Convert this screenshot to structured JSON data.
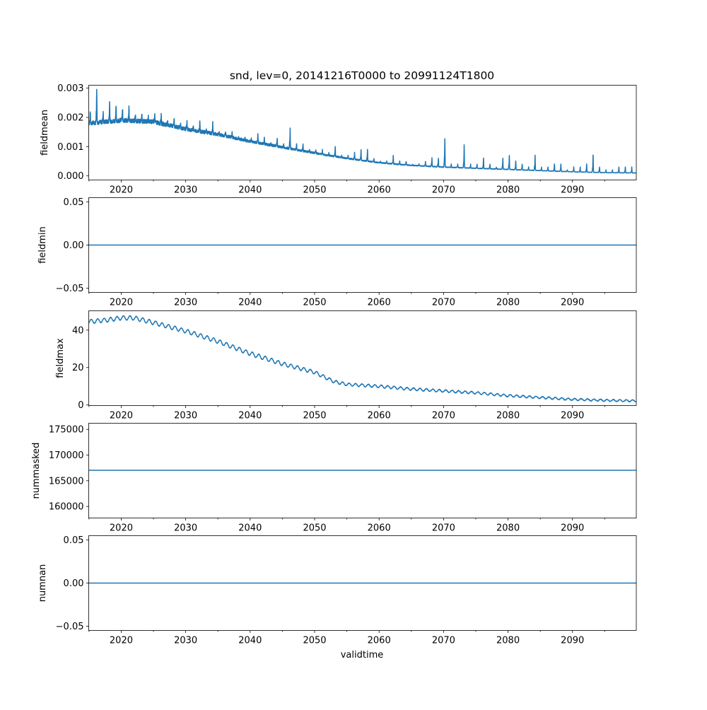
{
  "chart_data": {
    "type": "line",
    "title": "snd, lev=0, 20141216T0000 to 20991124T1800",
    "xlabel": "validtime",
    "xlim": [
      2014.96,
      2099.9
    ],
    "xticks": [
      "2020",
      "2030",
      "2040",
      "2050",
      "2060",
      "2070",
      "2080",
      "2090"
    ],
    "line_color": "#1f77b4",
    "subplots": [
      {
        "ylabel": "fieldmean",
        "ylim": [
          -0.00014,
          0.0031
        ],
        "yticks": [
          "0.000",
          "0.001",
          "0.002",
          "0.003"
        ],
        "ytick_values": [
          0,
          0.001,
          0.002,
          0.003
        ],
        "kind": "seasonal_spikes",
        "baseline_years": [
          2015,
          2020,
          2025,
          2030,
          2035,
          2040,
          2045,
          2050,
          2055,
          2060,
          2065,
          2070,
          2075,
          2080,
          2085,
          2090,
          2095,
          2100
        ],
        "baseline_values": [
          0.0018,
          0.0019,
          0.00185,
          0.0016,
          0.00142,
          0.00118,
          0.00098,
          0.00078,
          0.0006,
          0.00045,
          0.00036,
          0.0003,
          0.00026,
          0.00022,
          0.00018,
          0.00014,
          0.00011,
          0.0001
        ],
        "annual_peak_start_year": 2015,
        "annual_peak": [
          0.0022,
          0.003,
          0.0022,
          0.0026,
          0.0024,
          0.0023,
          0.0024,
          0.0021,
          0.0021,
          0.002,
          0.0021,
          0.0021,
          0.0019,
          0.002,
          0.0018,
          0.0019,
          0.0017,
          0.0019,
          0.0016,
          0.0018,
          0.0015,
          0.0015,
          0.0015,
          0.0013,
          0.0013,
          0.0013,
          0.0014,
          0.0013,
          0.0011,
          0.0013,
          0.0011,
          0.0016,
          0.0011,
          0.0011,
          0.0009,
          0.0009,
          0.0009,
          0.0008,
          0.001,
          0.0007,
          0.0007,
          0.0008,
          0.0009,
          0.0009,
          0.0006,
          0.0005,
          0.0005,
          0.0007,
          0.0005,
          0.0005,
          0.0004,
          0.0004,
          0.0005,
          0.0006,
          0.0006,
          0.00125,
          0.0004,
          0.0004,
          0.00105,
          0.0004,
          0.0004,
          0.0006,
          0.0004,
          0.0003,
          0.0006,
          0.0007,
          0.0005,
          0.0004,
          0.0003,
          0.0007,
          0.0003,
          0.0003,
          0.0004,
          0.0004,
          0.0002,
          0.0003,
          0.0003,
          0.0004,
          0.0007,
          0.0003,
          0.0002,
          0.0002,
          0.0003,
          0.0003,
          0.0003
        ]
      },
      {
        "ylabel": "fieldmin",
        "ylim": [
          -0.055,
          0.055
        ],
        "yticks": [
          "−0.05",
          "0.00",
          "0.05"
        ],
        "ytick_values": [
          -0.05,
          0,
          0.05
        ],
        "kind": "constant",
        "value": 0
      },
      {
        "ylabel": "fieldmax",
        "ylim": [
          -0.3,
          50.3
        ],
        "yticks": [
          "0",
          "20",
          "40"
        ],
        "ytick_values": [
          0,
          20,
          40
        ],
        "kind": "seasonal_wave",
        "trend_years": [
          2015,
          2018,
          2020,
          2022,
          2025,
          2030,
          2035,
          2040,
          2045,
          2050,
          2053,
          2055,
          2060,
          2065,
          2070,
          2075,
          2080,
          2085,
          2090,
          2095,
          2100
        ],
        "trend_values": [
          44.5,
          45.5,
          46.5,
          46.5,
          44,
          39.5,
          34,
          27.5,
          22,
          17.5,
          12.5,
          11,
          10,
          8.5,
          7.5,
          6.5,
          5,
          4,
          3,
          2.5,
          2.2
        ],
        "seasonal_amplitude": 1.1
      },
      {
        "ylabel": "nummasked",
        "ylim": [
          157750,
          176200
        ],
        "yticks": [
          "160000",
          "165000",
          "170000",
          "175000"
        ],
        "ytick_values": [
          160000,
          165000,
          170000,
          175000
        ],
        "kind": "constant",
        "value": 167050
      },
      {
        "ylabel": "numnan",
        "ylim": [
          -0.055,
          0.055
        ],
        "yticks": [
          "−0.05",
          "0.00",
          "0.05"
        ],
        "ytick_values": [
          -0.05,
          0,
          0.05
        ],
        "kind": "constant",
        "value": 0
      }
    ]
  }
}
